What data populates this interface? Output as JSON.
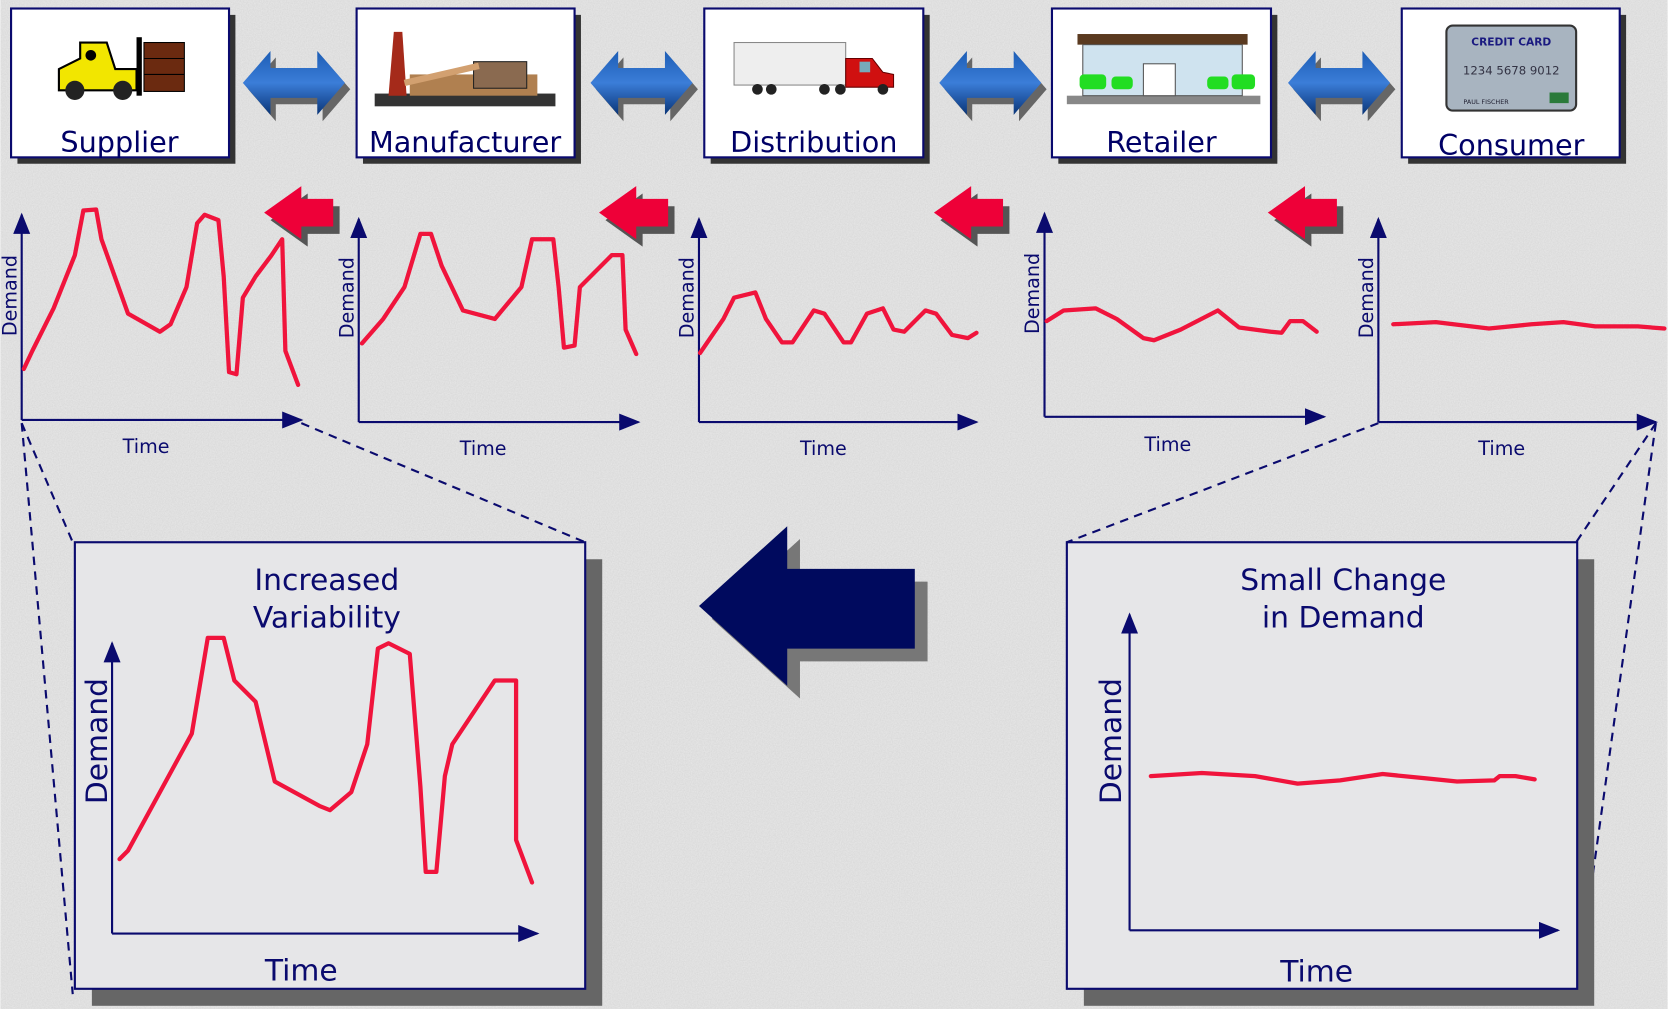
{
  "stages": [
    {
      "label": "Supplier"
    },
    {
      "label": "Manufacturer"
    },
    {
      "label": "Distribution"
    },
    {
      "label": "Retailer"
    },
    {
      "label": "Consumer"
    }
  ],
  "credit_card": {
    "title": "CREDIT CARD",
    "number": "1234 5678 9012",
    "holder": "PAUL FISCHER"
  },
  "small_charts": [
    {
      "y_label": "Demand",
      "x_label": "Time"
    },
    {
      "y_label": "Demand",
      "x_label": "Time"
    },
    {
      "y_label": "Demand",
      "x_label": "Time"
    },
    {
      "y_label": "Demand",
      "x_label": "Time"
    },
    {
      "y_label": "Demand",
      "x_label": "Time"
    }
  ],
  "panels": [
    {
      "title_lines": [
        "Increased",
        "Variability"
      ],
      "y_label": "Demand",
      "x_label": "Time"
    },
    {
      "title_lines": [
        "Small Change",
        "in Demand"
      ],
      "y_label": "Demand",
      "x_label": "Time"
    }
  ]
}
